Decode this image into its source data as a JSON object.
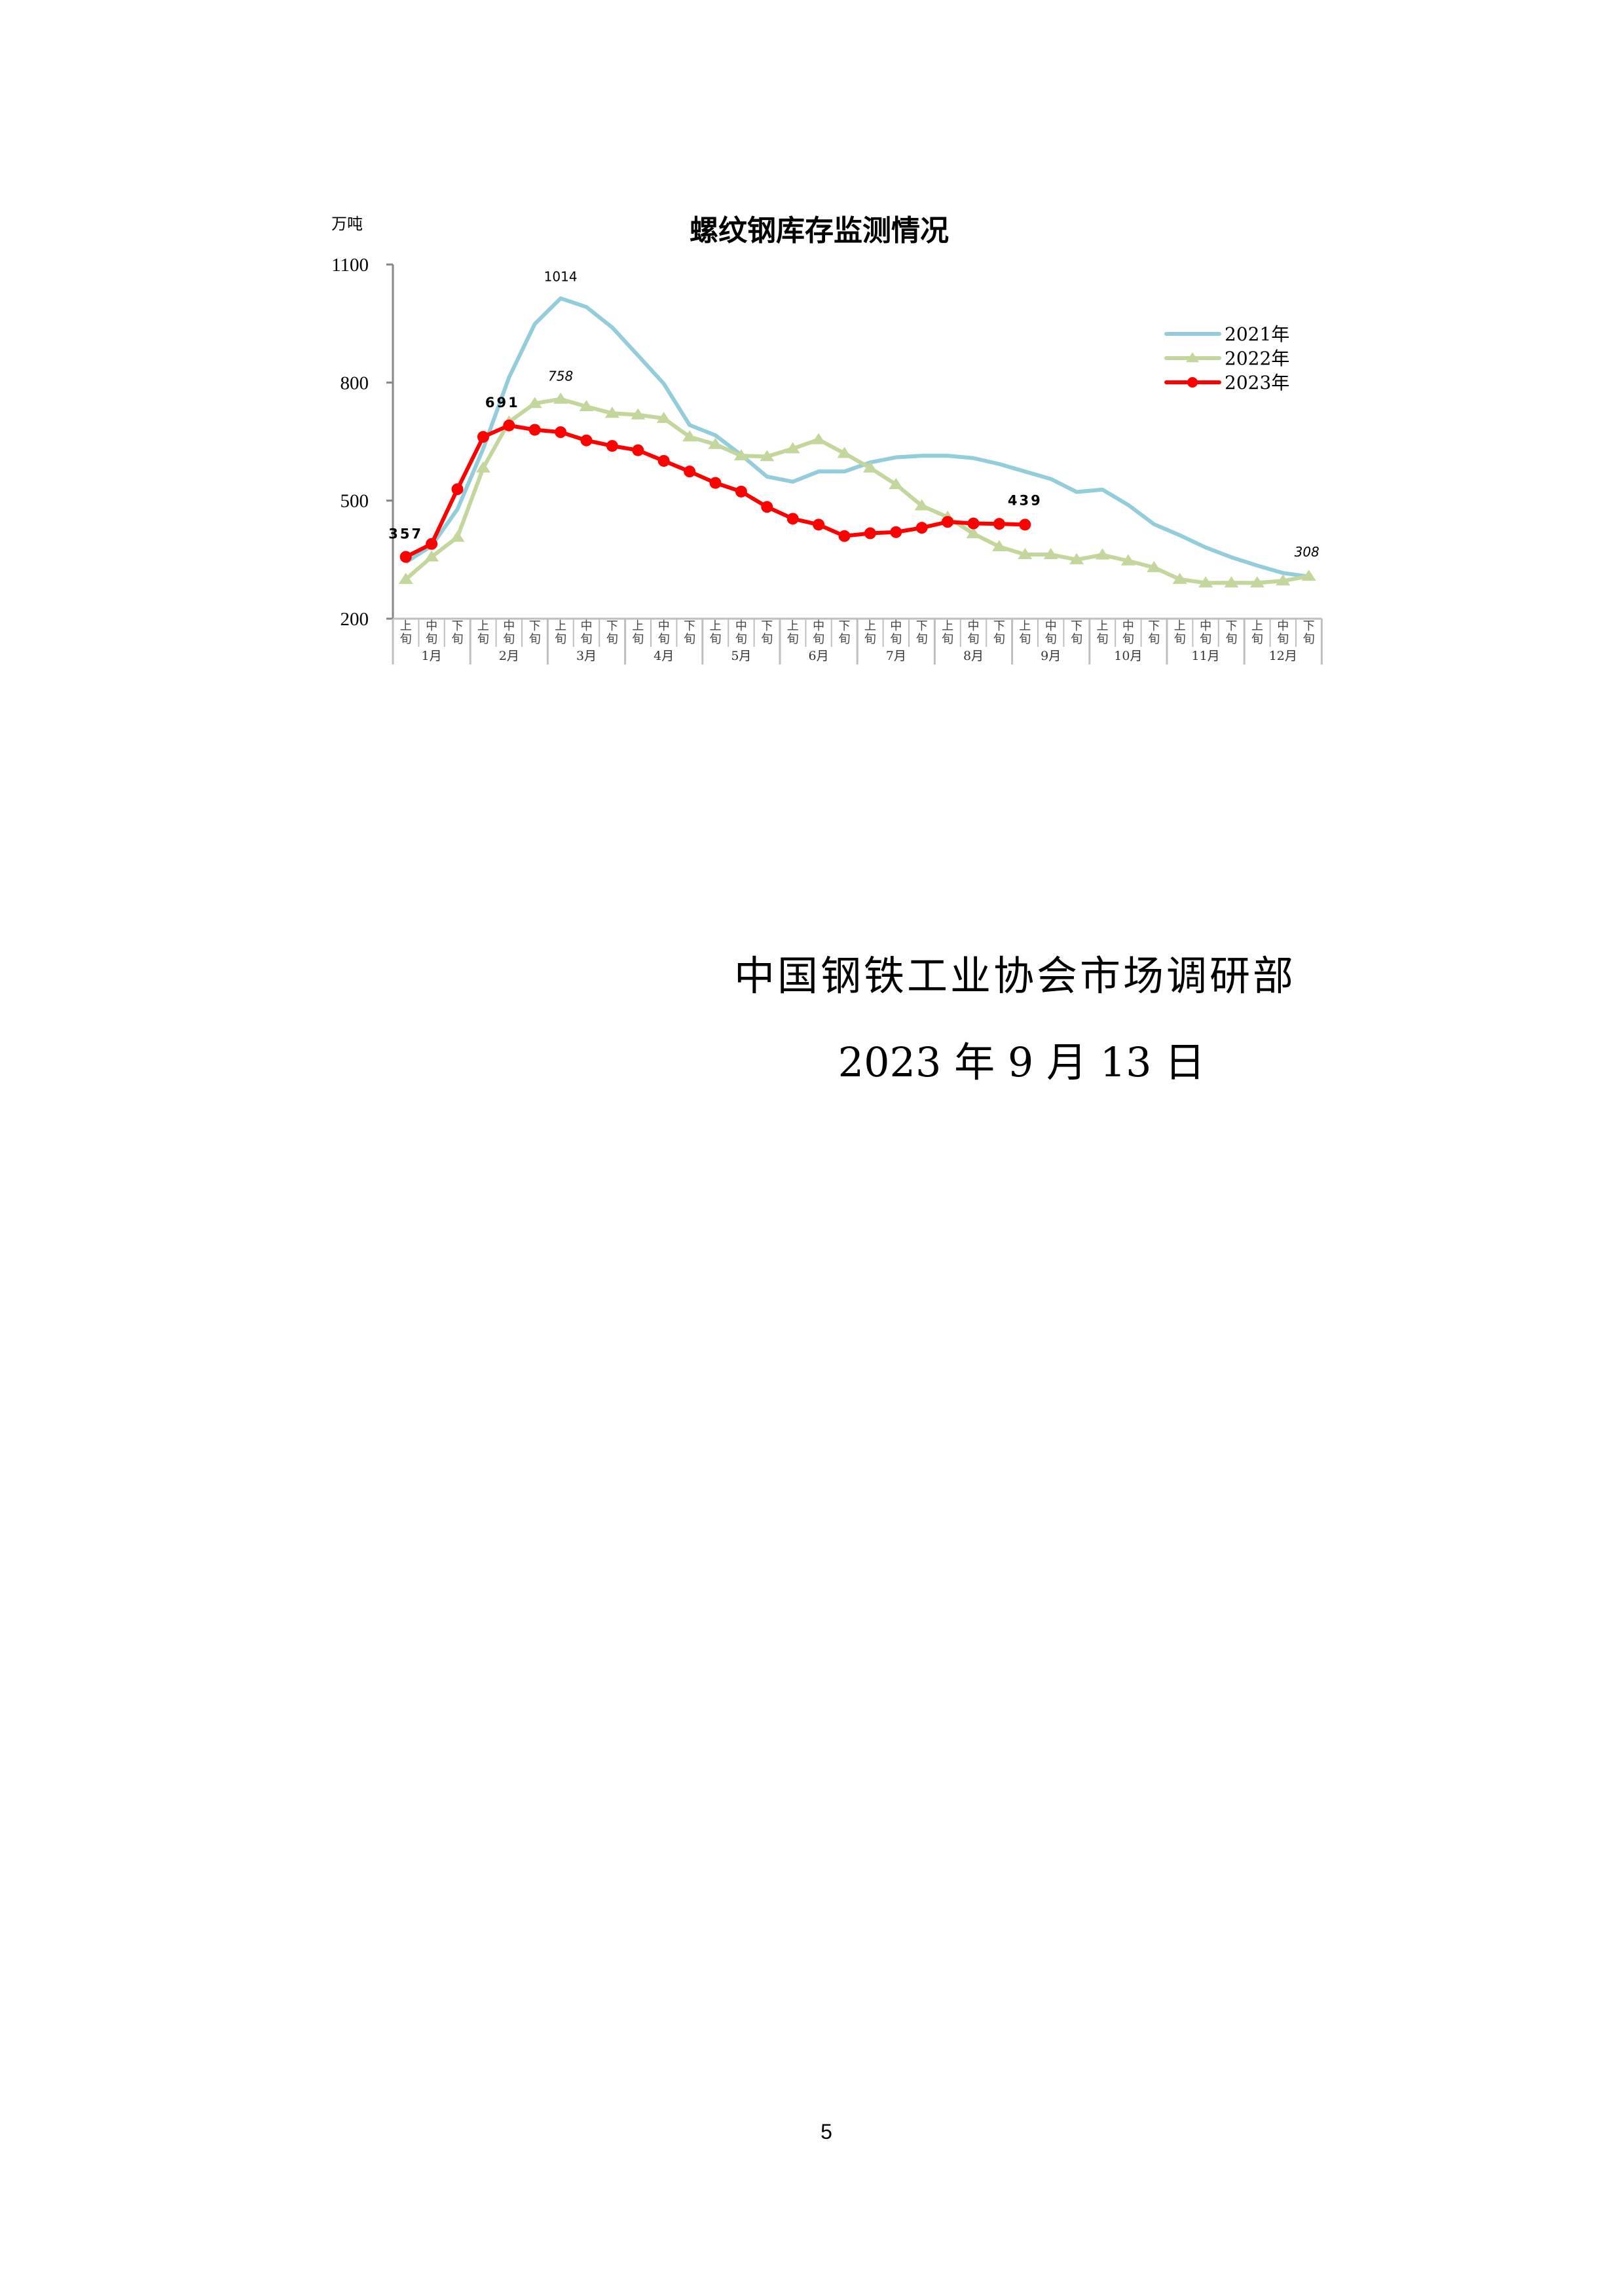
{
  "chart_data": {
    "type": "line",
    "title": "螺纹钢库存监测情况",
    "ylabel": "万吨",
    "ylim": [
      200,
      1100
    ],
    "yticks": [
      "200",
      "500",
      "800",
      "1100"
    ],
    "period_labels": [
      "上旬",
      "中旬",
      "下旬"
    ],
    "months": [
      "1月",
      "2月",
      "3月",
      "4月",
      "5月",
      "6月",
      "7月",
      "8月",
      "9月",
      "10月",
      "11月",
      "12月"
    ],
    "grid": false,
    "legend": "right",
    "series": [
      {
        "name": "2021年",
        "color": "#92CDDC",
        "marker": "none",
        "values": [
          343,
          385,
          478,
          632,
          813,
          949,
          1014,
          992,
          940,
          869,
          797,
          692,
          666,
          616,
          561,
          548,
          574,
          574,
          597,
          610,
          614,
          614,
          608,
          593,
          574,
          555,
          522,
          528,
          489,
          440,
          412,
          381,
          356,
          335,
          316,
          307
        ]
      },
      {
        "name": "2022年",
        "color": "#C3D69B",
        "marker": "triangle",
        "values": [
          300,
          357,
          407,
          583,
          700,
          747,
          758,
          739,
          722,
          718,
          709,
          662,
          643,
          614,
          612,
          632,
          655,
          620,
          583,
          541,
          487,
          458,
          416,
          383,
          363,
          363,
          350,
          362,
          347,
          330,
          300,
          291,
          291,
          291,
          296,
          308
        ]
      },
      {
        "name": "2023年",
        "color": "#FF0000",
        "marker": "circle",
        "values": [
          357,
          390,
          529,
          662,
          691,
          680,
          674,
          653,
          639,
          628,
          601,
          574,
          545,
          523,
          484,
          454,
          439,
          410,
          417,
          420,
          431,
          446,
          442,
          441,
          439
        ]
      }
    ],
    "annotations": [
      {
        "series": "2021年",
        "index": 6,
        "text": "1014",
        "style": "normal"
      },
      {
        "series": "2022年",
        "index": 6,
        "text": "758",
        "style": "italic"
      },
      {
        "series": "2023年",
        "index": 4,
        "text": "691",
        "style": "bold"
      },
      {
        "series": "2023年",
        "index": 0,
        "text": "357",
        "style": "bold"
      },
      {
        "series": "2023年",
        "index": 24,
        "text": "439",
        "style": "bold"
      },
      {
        "series": "2022年",
        "index": 35,
        "text": "308",
        "style": "italic"
      }
    ]
  },
  "footer": {
    "organization": "中国钢铁工业协会市场调研部",
    "date": "2023 年 9 月 13 日",
    "page_number": "5"
  }
}
